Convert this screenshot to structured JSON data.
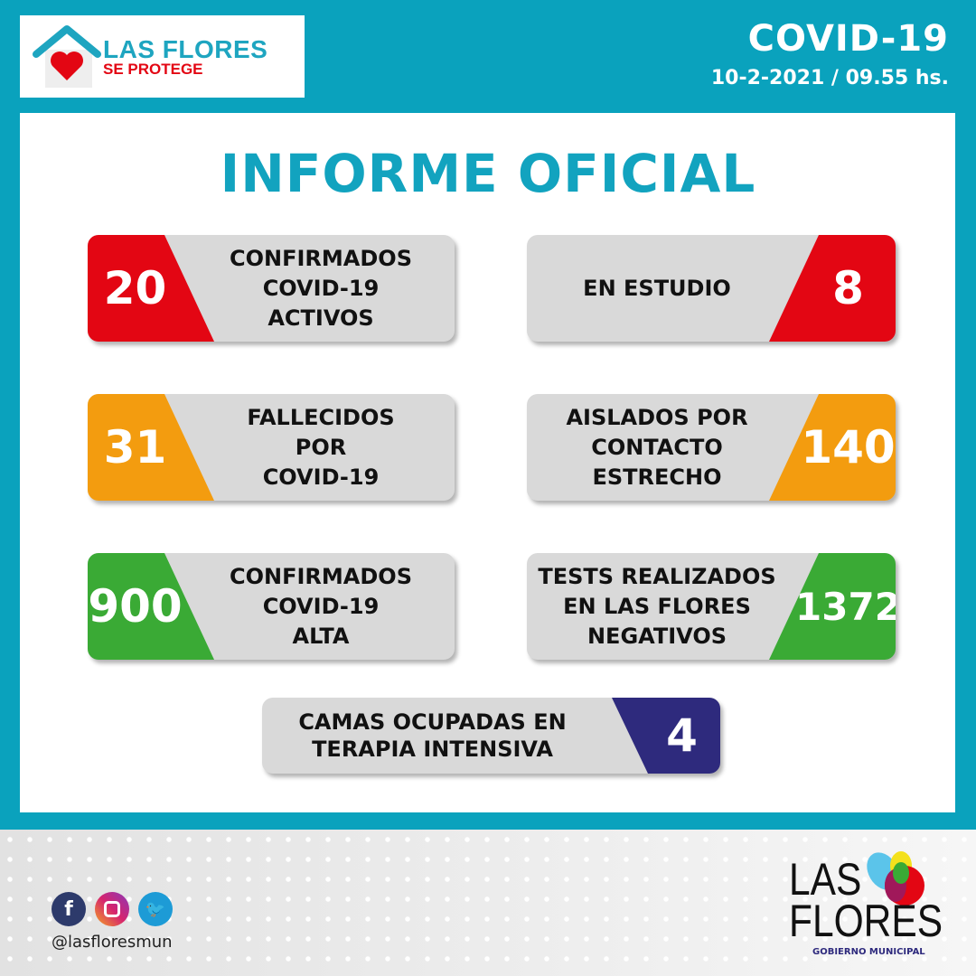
{
  "header": {
    "logo_line1": "LAS FLORES",
    "logo_line2": "SE PROTEGE",
    "title": "COVID-19",
    "date": "10-2-2021 / 09.55 hs."
  },
  "main": {
    "title": "INFORME OFICIAL",
    "cards": [
      {
        "value": "20",
        "label": "CONFIRMADOS\nCOVID-19\nACTIVOS",
        "color": "#e30613"
      },
      {
        "value": "8",
        "label": "EN ESTUDIO",
        "color": "#e30613"
      },
      {
        "value": "31",
        "label": "FALLECIDOS\nPOR\nCOVID-19",
        "color": "#f39c0f"
      },
      {
        "value": "140",
        "label": "AISLADOS POR\nCONTACTO\nESTRECHO",
        "color": "#f39c0f"
      },
      {
        "value": "900",
        "label": "CONFIRMADOS\nCOVID-19\nALTA",
        "color": "#3aaa35"
      },
      {
        "value": "1372",
        "label": "TESTS REALIZADOS\nEN LAS FLORES\nNEGATIVOS",
        "color": "#3aaa35"
      },
      {
        "value": "4",
        "label": "CAMAS OCUPADAS EN\nTERAPIA INTENSIVA",
        "color": "#2e2a7d"
      }
    ]
  },
  "footer": {
    "handle": "@lasfloresmun",
    "logo_line1": "LAS",
    "logo_line2": "FLORES",
    "logo_sub": "GOBIERNO MUNICIPAL",
    "social": [
      "facebook-icon",
      "instagram-icon",
      "twitter-icon"
    ]
  }
}
